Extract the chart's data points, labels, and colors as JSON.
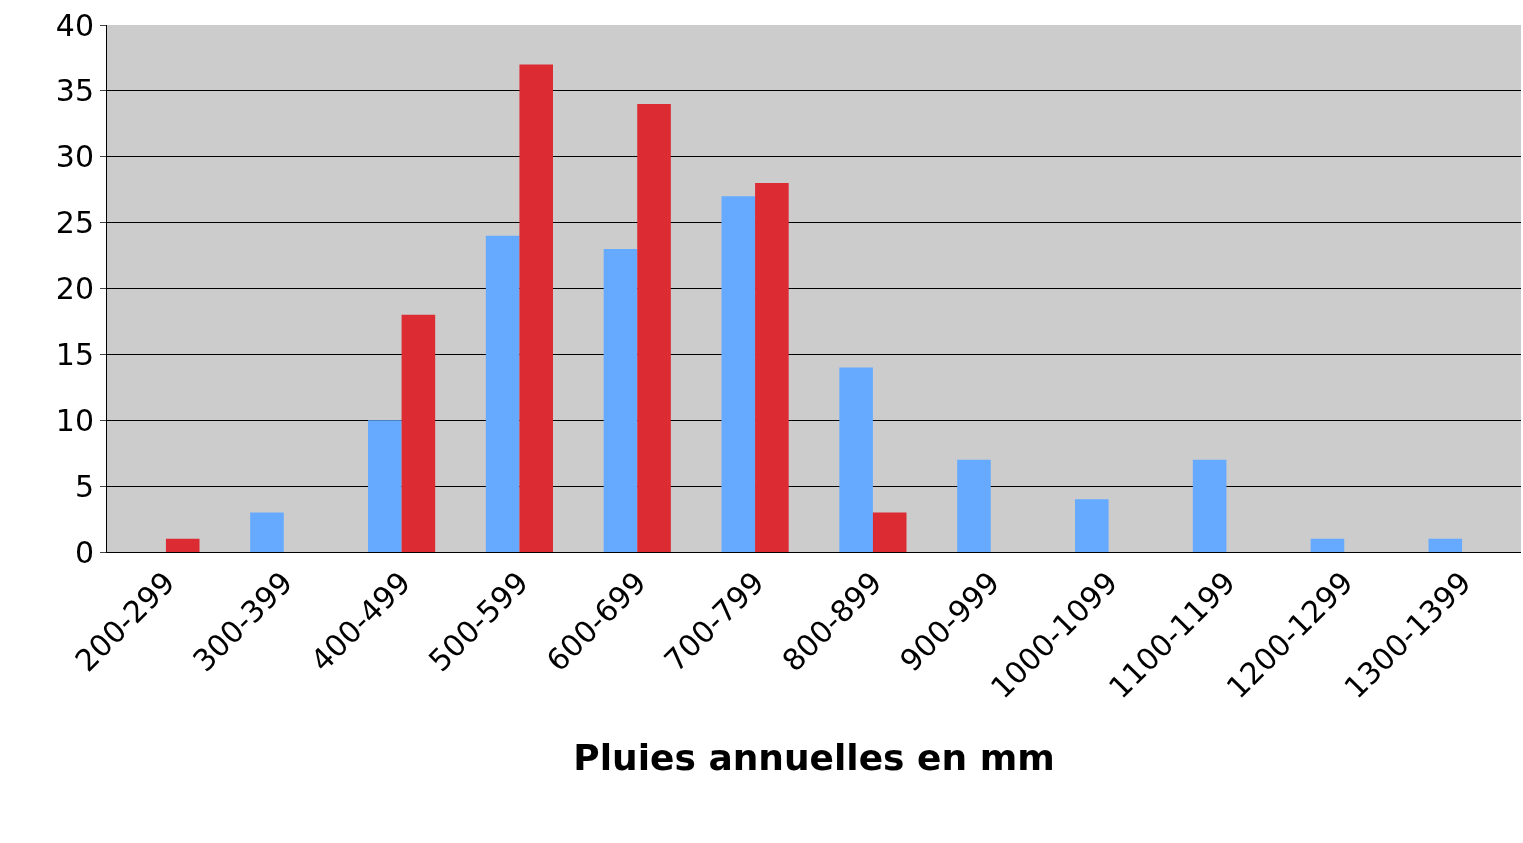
{
  "chart_data": {
    "type": "bar",
    "xlabel": "Pluies annuelles en mm",
    "categories": [
      "200-299",
      "300-399",
      "400-499",
      "500-599",
      "600-699",
      "700-799",
      "800-899",
      "900-999",
      "1000-1099",
      "1100-1199",
      "1200-1299",
      "1300-1399"
    ],
    "series": [
      {
        "color": "#66aaff",
        "values": [
          0,
          3,
          10,
          24,
          23,
          27,
          14,
          7,
          4,
          7,
          1,
          1
        ]
      },
      {
        "color": "#dc2b33",
        "values": [
          1,
          0,
          18,
          37,
          34,
          28,
          3,
          0,
          0,
          0,
          0,
          0
        ]
      }
    ],
    "ylim": [
      0,
      40
    ],
    "yticks": [
      0,
      5,
      10,
      15,
      20,
      25,
      30,
      35,
      40
    ],
    "grid": "y"
  }
}
